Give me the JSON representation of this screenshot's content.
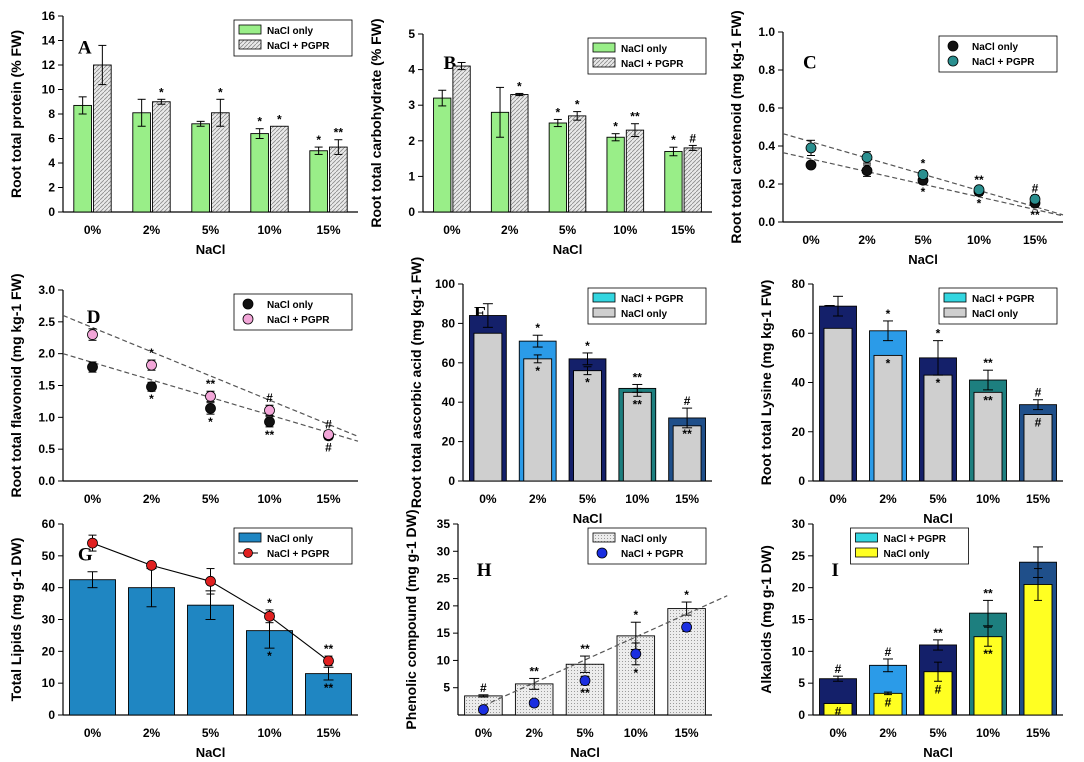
{
  "colors": {
    "green": "#99ee88",
    "hatch": "#d4d4d4",
    "black": "#111111",
    "teal": "#2a8f8f",
    "pink": "#f2a6d8",
    "navy": "#14206a",
    "sky": "#2b9be8",
    "tealbar": "#1d7f7f",
    "darkblue": "#1f4f8a",
    "gray": "#cfcfcf",
    "cyanlegend": "#33d6e0",
    "steelblue": "#1f86c2",
    "red": "#e02020",
    "blue": "#1a2ee0",
    "yellow": "#ffff22",
    "stipple": "#e2e2e2"
  },
  "chart_data": [
    {
      "id": "A",
      "letter": "A",
      "type": "bar",
      "title": "",
      "xlabel": "NaCl",
      "ylabel": "Root total protein (% FW)",
      "categories": [
        "0%",
        "2%",
        "5%",
        "10%",
        "15%"
      ],
      "ylim": [
        0,
        16
      ],
      "yticks": [
        0,
        2,
        4,
        6,
        8,
        10,
        12,
        14,
        16
      ],
      "legend_position": "top-right",
      "series": [
        {
          "name": "NaCl only",
          "style": "green",
          "values": [
            8.7,
            8.1,
            7.2,
            6.4,
            5.0
          ],
          "errors": [
            0.7,
            1.1,
            0.2,
            0.4,
            0.3
          ],
          "marks": [
            "",
            "",
            "",
            "*",
            "*"
          ]
        },
        {
          "name": "NaCl + PGPR",
          "style": "hatch",
          "values": [
            12.0,
            9.0,
            8.1,
            7.0,
            5.3
          ],
          "errors": [
            1.6,
            0.2,
            1.1,
            0.0,
            0.6
          ],
          "marks": [
            "",
            "*",
            "*",
            "*",
            "**"
          ]
        }
      ]
    },
    {
      "id": "B",
      "letter": "B",
      "type": "bar",
      "title": "",
      "xlabel": "NaCl",
      "ylabel": "Root total carbohydrate (% FW)",
      "categories": [
        "0%",
        "2%",
        "5%",
        "10%",
        "15%"
      ],
      "ylim": [
        0,
        5
      ],
      "yticks": [
        0,
        1,
        2,
        3,
        4,
        5
      ],
      "legend_position": "top-right",
      "series": [
        {
          "name": "NaCl only",
          "style": "green",
          "values": [
            3.2,
            2.8,
            2.5,
            2.1,
            1.7
          ],
          "errors": [
            0.22,
            0.7,
            0.1,
            0.1,
            0.12
          ],
          "marks": [
            "",
            "",
            "*",
            "*",
            "*"
          ]
        },
        {
          "name": "NaCl + PGPR",
          "style": "hatch",
          "values": [
            4.1,
            3.3,
            2.7,
            2.3,
            1.8
          ],
          "errors": [
            0.1,
            0.03,
            0.12,
            0.18,
            0.07
          ],
          "marks": [
            "",
            "*",
            "*",
            "**",
            "#"
          ]
        }
      ]
    },
    {
      "id": "C",
      "letter": "C",
      "type": "scatter",
      "title": "",
      "xlabel": "NaCl",
      "ylabel": "Root total carotenoid (mg kg-1 FW)",
      "categories": [
        "0%",
        "2%",
        "5%",
        "10%",
        "15%"
      ],
      "ylim": [
        0,
        1.0
      ],
      "yticks": [
        0.0,
        0.2,
        0.4,
        0.6,
        0.8,
        1.0
      ],
      "legend_position": "top-right",
      "series": [
        {
          "name": "NaCl only",
          "style": "black",
          "values": [
            0.3,
            0.27,
            0.22,
            0.16,
            0.1
          ],
          "errors": [
            0.015,
            0.03,
            0.02,
            0.02,
            0.02
          ],
          "marks_below": [
            "",
            "",
            "*",
            "*",
            "**"
          ],
          "trend": [
            0.365,
            -0.0665
          ]
        },
        {
          "name": "NaCl + PGPR",
          "style": "teal",
          "values": [
            0.39,
            0.34,
            0.25,
            0.17,
            0.12
          ],
          "errors": [
            0.04,
            0.03,
            0.02,
            0.015,
            0.02
          ],
          "marks_above": [
            "",
            "",
            "*",
            "**",
            "#"
          ],
          "trend": [
            0.465,
            -0.0855
          ]
        }
      ]
    },
    {
      "id": "D",
      "letter": "D",
      "type": "scatter",
      "title": "",
      "xlabel": "",
      "ylabel": "Root total flavonoid (mg kg-1 FW)",
      "categories": [
        "0%",
        "2%",
        "5%",
        "10%",
        "15%"
      ],
      "ylim": [
        0.0,
        3.0
      ],
      "yticks": [
        0.0,
        0.5,
        1.0,
        1.5,
        2.0,
        2.5,
        3.0
      ],
      "legend_position": "top-right",
      "series": [
        {
          "name": "NaCl only",
          "style": "black",
          "values": [
            1.79,
            1.48,
            1.14,
            0.93,
            0.71
          ],
          "errors": [
            0.08,
            0.07,
            0.09,
            0.08,
            0.06
          ],
          "marks_below": [
            "",
            "*",
            "*",
            "**",
            "#"
          ],
          "trend": [
            2.0,
            -0.275
          ]
        },
        {
          "name": "NaCl + PGPR",
          "style": "pink",
          "values": [
            2.3,
            1.82,
            1.33,
            1.11,
            0.73
          ],
          "errors": [
            0.09,
            0.08,
            0.08,
            0.08,
            0.05
          ],
          "marks_above": [
            "",
            "*",
            "**",
            "#",
            "#"
          ],
          "trend": [
            2.6,
            -0.38
          ]
        }
      ]
    },
    {
      "id": "E",
      "letter": "E",
      "type": "bar",
      "title": "",
      "xlabel": "NaCl",
      "ylabel": "Root total ascorbic acid (mg kg-1 FW)",
      "categories": [
        "0%",
        "2%",
        "5%",
        "10%",
        "15%"
      ],
      "ylim": [
        0,
        100
      ],
      "yticks": [
        0,
        20,
        40,
        60,
        80,
        100
      ],
      "legend_position": "top-right",
      "legend": [
        {
          "name": "NaCl + PGPR",
          "style": "cyanlegend"
        },
        {
          "name": "NaCl only",
          "style": "gray"
        }
      ],
      "outer": {
        "values": [
          84,
          71,
          62,
          47,
          32
        ],
        "errors": [
          6,
          3,
          3,
          2,
          5
        ],
        "marks": [
          "",
          "*",
          "*",
          "**",
          "#"
        ],
        "styles": [
          "navy",
          "sky",
          "navy",
          "tealbar",
          "darkblue"
        ]
      },
      "inner": {
        "values": [
          75,
          62,
          56,
          45,
          28
        ],
        "errors": [
          0,
          2,
          2,
          2,
          0
        ],
        "marks": [
          "",
          "*",
          "*",
          "**",
          "**"
        ],
        "style": "gray"
      }
    },
    {
      "id": "F",
      "letter": "F",
      "type": "bar",
      "title": "",
      "xlabel": "NaCl",
      "ylabel": "Root total Lysine (mg kg-1 FW)",
      "categories": [
        "0%",
        "2%",
        "5%",
        "10%",
        "15%"
      ],
      "ylim": [
        0,
        80
      ],
      "yticks": [
        0,
        20,
        40,
        60,
        80
      ],
      "legend_position": "top-right",
      "legend": [
        {
          "name": "NaCl + PGPR",
          "style": "cyanlegend"
        },
        {
          "name": "NaCl only",
          "style": "gray"
        }
      ],
      "outer": {
        "values": [
          71,
          61,
          50,
          41,
          31
        ],
        "errors": [
          4,
          4,
          7,
          4,
          2
        ],
        "marks": [
          "",
          "*",
          "*",
          "**",
          "#"
        ],
        "styles": [
          "navy",
          "sky",
          "navy",
          "tealbar",
          "darkblue"
        ]
      },
      "inner": {
        "values": [
          62,
          51,
          43,
          36,
          27
        ],
        "errors": [
          0,
          0,
          0,
          0,
          0
        ],
        "marks": [
          "",
          "*",
          "*",
          "**",
          "#"
        ],
        "style": "gray"
      }
    },
    {
      "id": "G",
      "letter": "G",
      "type": "bar",
      "title": "",
      "xlabel": "NaCl",
      "ylabel": "Total Lipids (mg g-1 DW)",
      "categories": [
        "0%",
        "2%",
        "5%",
        "10%",
        "15%"
      ],
      "ylim": [
        0,
        60
      ],
      "yticks": [
        0,
        10,
        20,
        30,
        40,
        50,
        60
      ],
      "legend_position": "top-right",
      "bars": {
        "name": "NaCl only",
        "style": "steelblue",
        "values": [
          42.5,
          40.0,
          34.5,
          26.5,
          13.0
        ],
        "errors": [
          2.5,
          6.0,
          4.5,
          5.5,
          2.0
        ],
        "marks": [
          "",
          "",
          "",
          "*",
          "**"
        ]
      },
      "line": {
        "name": "NaCl + PGPR",
        "style": "red",
        "values": [
          54,
          47,
          42,
          31,
          17
        ],
        "errors": [
          2.5,
          0.8,
          4.0,
          2.0,
          1.5
        ],
        "marks": [
          "",
          "",
          "",
          "*",
          "**"
        ]
      }
    },
    {
      "id": "H",
      "letter": "H",
      "type": "bar",
      "title": "",
      "xlabel": "NaCl",
      "ylabel": "Phenolic compound (mg g-1 DW)",
      "categories": [
        "0%",
        "2%",
        "5%",
        "10%",
        "15%"
      ],
      "ylim": [
        0,
        35
      ],
      "yticks": [
        5,
        10,
        15,
        20,
        25,
        30,
        35
      ],
      "legend_position": "top-right",
      "bars": {
        "name": "NaCl only",
        "style": "stipple",
        "values": [
          3.5,
          5.7,
          9.3,
          14.5,
          19.5
        ],
        "errors": [
          0.2,
          1.0,
          1.5,
          2.5,
          1.2
        ],
        "marks": [
          "#",
          "**",
          "**",
          "*",
          "*"
        ]
      },
      "points": {
        "name": "NaCl + PGPR",
        "style": "blue",
        "values": [
          1.0,
          2.2,
          6.3,
          11.2,
          16.1
        ],
        "errors": [
          0.3,
          0.4,
          0.8,
          2.0,
          0.8
        ],
        "marks_below": [
          "",
          "",
          "**",
          "*",
          ""
        ]
      },
      "trend": [
        -2.5,
        4.2
      ]
    },
    {
      "id": "I",
      "letter": "I",
      "type": "bar",
      "title": "",
      "xlabel": "NaCl",
      "ylabel": "Alkaloids (mg g-1 DW)",
      "categories": [
        "0%",
        "2%",
        "5%",
        "10%",
        "15%"
      ],
      "ylim": [
        0,
        30
      ],
      "yticks": [
        0,
        5,
        10,
        15,
        20,
        25,
        30
      ],
      "legend_position": "top-left",
      "legend": [
        {
          "name": "NaCl + PGPR",
          "style": "cyanlegend"
        },
        {
          "name": "NaCl only",
          "style": "yellow"
        }
      ],
      "outer": {
        "values": [
          5.7,
          7.8,
          11.0,
          16.0,
          24.0
        ],
        "errors": [
          0.4,
          1.0,
          0.8,
          2.0,
          2.4
        ],
        "marks": [
          "#",
          "#",
          "**",
          "**",
          ""
        ],
        "styles": [
          "navy",
          "sky",
          "navy",
          "tealbar",
          "darkblue"
        ]
      },
      "inner": {
        "values": [
          1.8,
          3.4,
          6.8,
          12.3,
          20.5
        ],
        "errors": [
          0.0,
          0.2,
          1.5,
          1.5,
          2.5
        ],
        "marks": [
          "#",
          "#",
          "#",
          "**",
          ""
        ],
        "style": "yellow"
      }
    }
  ]
}
